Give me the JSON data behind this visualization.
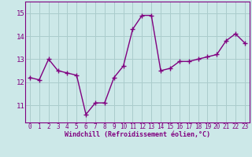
{
  "x": [
    0,
    1,
    2,
    3,
    4,
    5,
    6,
    7,
    8,
    9,
    10,
    11,
    12,
    13,
    14,
    15,
    16,
    17,
    18,
    19,
    20,
    21,
    22,
    23
  ],
  "y": [
    12.2,
    12.1,
    13.0,
    12.5,
    12.4,
    12.3,
    10.6,
    11.1,
    11.1,
    12.2,
    12.7,
    14.3,
    14.9,
    14.9,
    12.5,
    12.6,
    12.9,
    12.9,
    13.0,
    13.1,
    13.2,
    13.8,
    14.1,
    13.7
  ],
  "ylim": [
    10.25,
    15.5
  ],
  "yticks": [
    11,
    12,
    13,
    14,
    15
  ],
  "xticks": [
    0,
    1,
    2,
    3,
    4,
    5,
    6,
    7,
    8,
    9,
    10,
    11,
    12,
    13,
    14,
    15,
    16,
    17,
    18,
    19,
    20,
    21,
    22,
    23
  ],
  "xlabel": "Windchill (Refroidissement éolien,°C)",
  "line_color": "#800080",
  "bg_color": "#cce8e8",
  "grid_color": "#aacccc",
  "marker": "+",
  "linewidth": 1.0,
  "markersize": 4,
  "tick_fontsize": 5.5,
  "xlabel_fontsize": 6.0
}
